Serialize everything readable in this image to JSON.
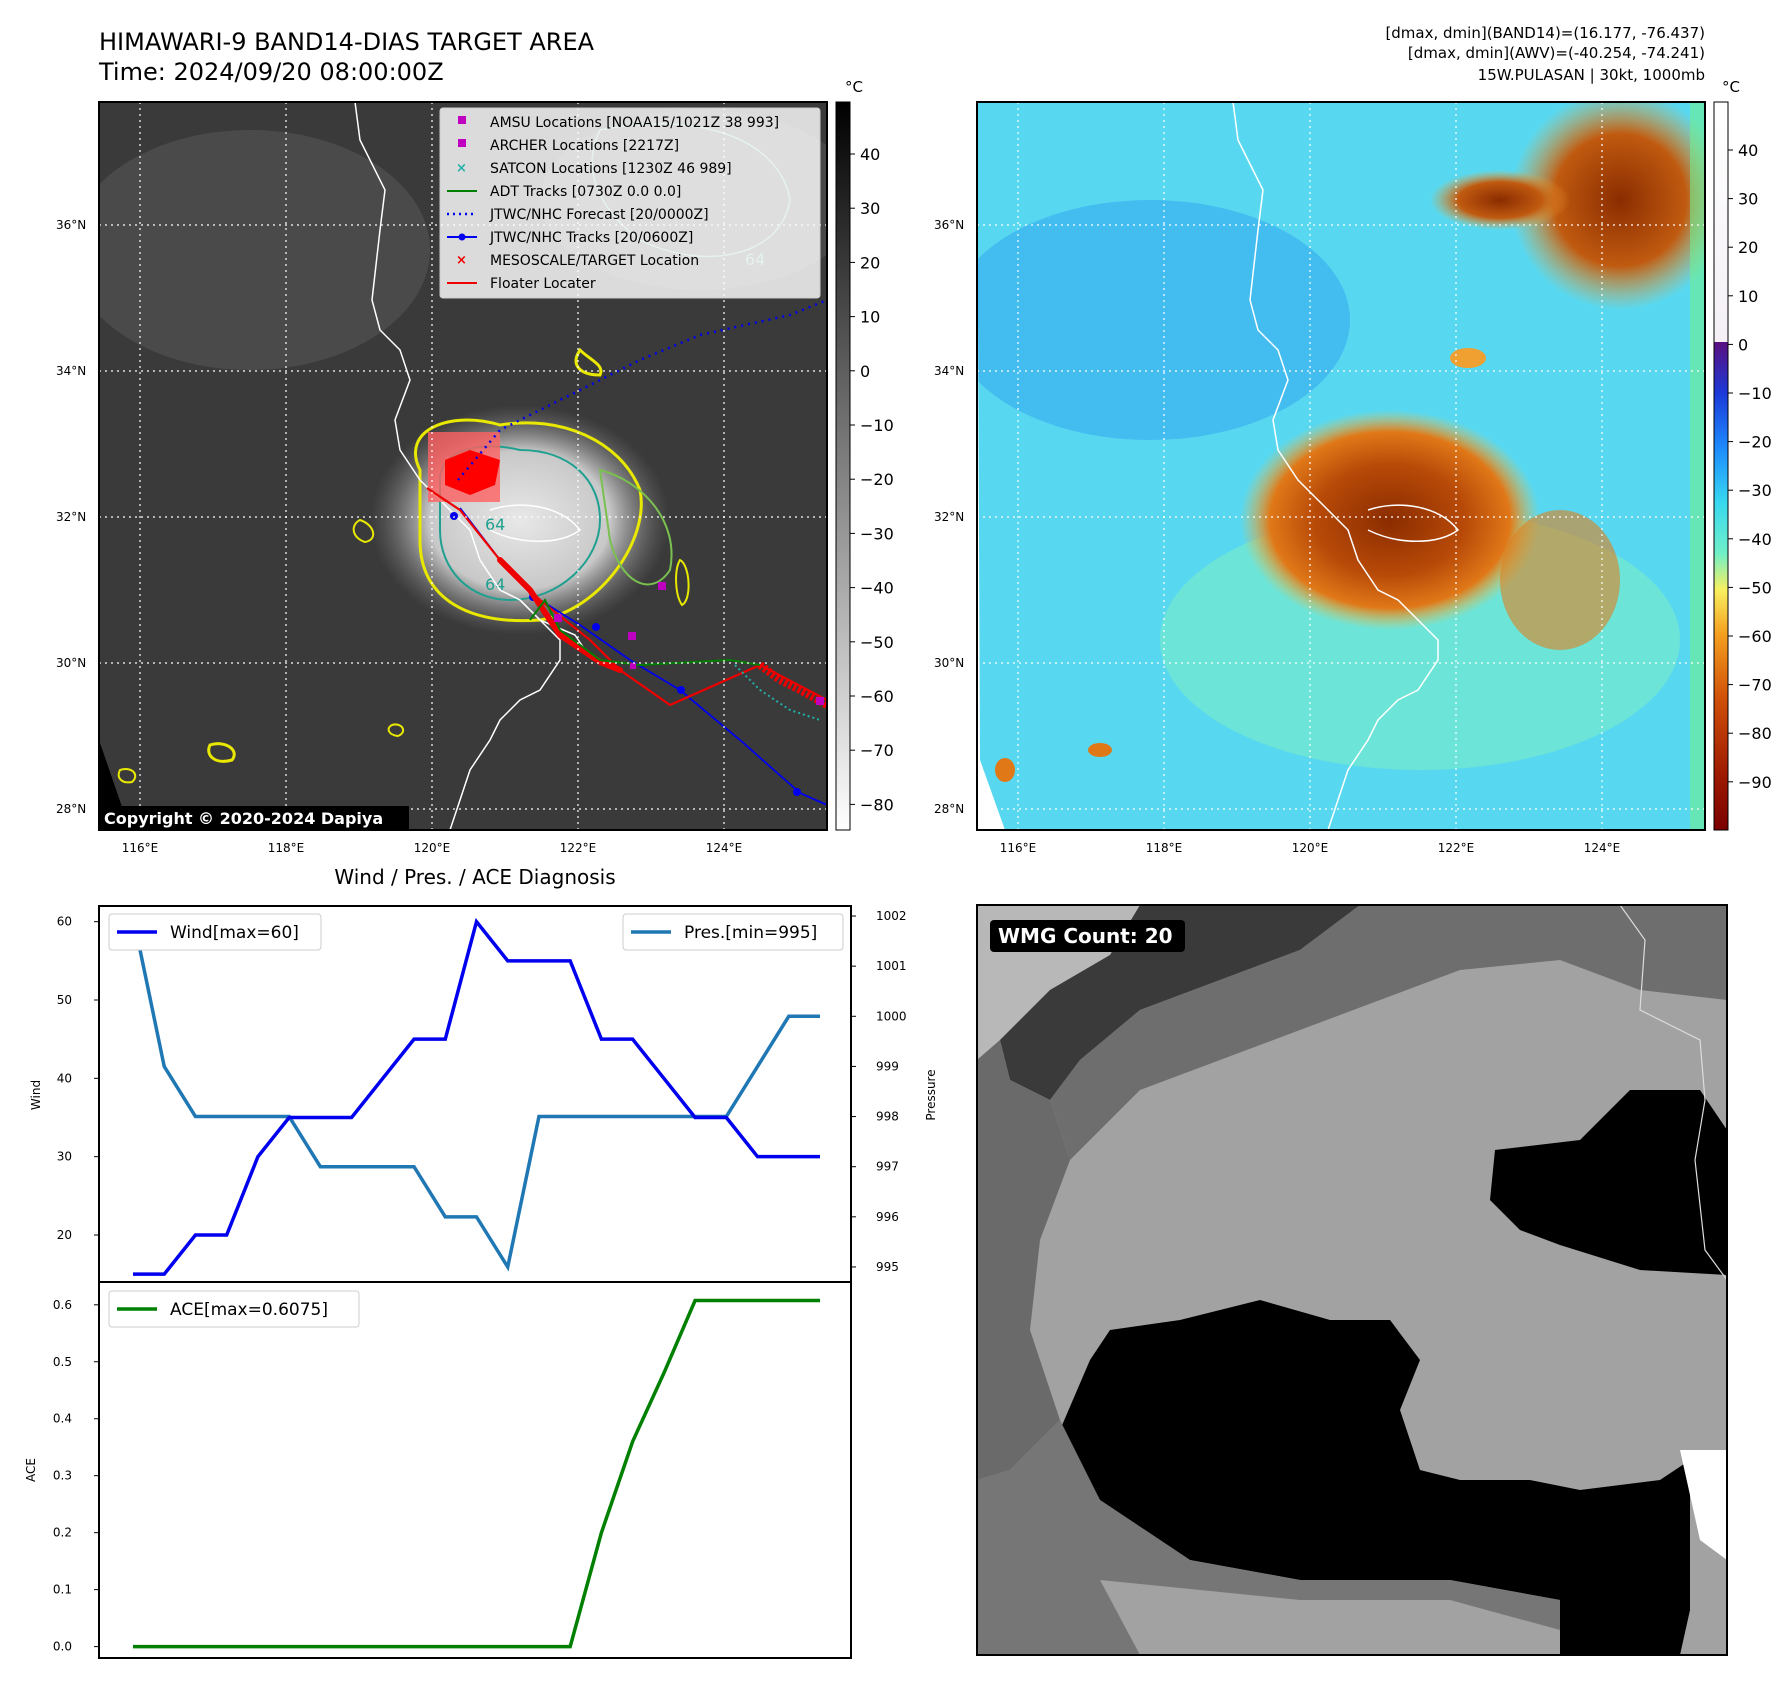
{
  "header": {
    "title": "HIMAWARI-9 BAND14-DIAS TARGET AREA",
    "time": "Time: 2024/09/20 08:00:00Z",
    "stats_band14": "[dmax, dmin](BAND14)=(16.177, -76.437)",
    "stats_awv": "[dmax, dmin](AWV)=(-40.254, -74.241)",
    "storm_info": "15W.PULASAN | 30kt, 1000mb"
  },
  "map": {
    "lat_labels": [
      "36°N",
      "34°N",
      "32°N",
      "30°N",
      "28°N"
    ],
    "lon_labels": [
      "116°E",
      "118°E",
      "120°E",
      "122°E",
      "124°E"
    ],
    "copyright": "Copyright © 2020-2024 Dapiya",
    "contour_labels": [
      "64",
      "64",
      "64"
    ],
    "legend": [
      {
        "label": "AMSU Locations [NOAA15/1021Z 38 993]",
        "kind": "square",
        "color": "#c000c0"
      },
      {
        "label": "ARCHER Locations [2217Z]",
        "kind": "square",
        "color": "#c000c0"
      },
      {
        "label": "SATCON Locations [1230Z 46 989]",
        "kind": "x",
        "color": "#20b0a8"
      },
      {
        "label": "ADT Tracks [0730Z 0.0 0.0]",
        "kind": "line",
        "color": "#008000"
      },
      {
        "label": "JTWC/NHC Forecast [20/0000Z]",
        "kind": "dotted",
        "color": "#0000ee"
      },
      {
        "label": "JTWC/NHC Tracks [20/0600Z]",
        "kind": "line-dot",
        "color": "#0000ee"
      },
      {
        "label": "MESOSCALE/TARGET Location",
        "kind": "x",
        "color": "#ee0000"
      },
      {
        "label": "Floater Locater",
        "kind": "line",
        "color": "#ee0000"
      }
    ]
  },
  "colorbars": {
    "unit": "°C",
    "band14_ticks": [
      "40",
      "30",
      "20",
      "10",
      "0",
      "−10",
      "−20",
      "−30",
      "−40",
      "−50",
      "−60",
      "−70",
      "−80"
    ],
    "awv_ticks": [
      "40",
      "30",
      "20",
      "10",
      "0",
      "−10",
      "−20",
      "−30",
      "−40",
      "−50",
      "−60",
      "−70",
      "−80",
      "−90"
    ]
  },
  "wmg": {
    "label": "WMG Count: 20"
  },
  "chart_data": [
    {
      "type": "line",
      "title": "Wind / Pres. / ACE Diagnosis",
      "ylabel": "Wind",
      "ylim": [
        14,
        62
      ],
      "yticks": [
        20,
        30,
        40,
        50,
        60
      ],
      "y2label": "Pressure",
      "y2lim": [
        994.7,
        1002.2
      ],
      "y2ticks": [
        995,
        996,
        997,
        998,
        999,
        1000,
        1001,
        1002
      ],
      "series": [
        {
          "name": "Wind[max=60]",
          "axis": "left",
          "color": "#0000ee",
          "values": [
            15,
            15,
            20,
            20,
            30,
            35,
            35,
            35,
            40,
            45,
            45,
            60,
            55,
            55,
            55,
            45,
            45,
            40,
            35,
            35,
            30,
            30,
            30
          ]
        },
        {
          "name": "Pres.[min=995]",
          "axis": "right",
          "color": "#1f77b4",
          "values": [
            1002,
            999,
            998,
            998,
            998,
            998,
            997,
            997,
            997,
            997,
            996,
            996,
            995,
            998,
            998,
            998,
            998,
            998,
            998,
            998,
            999,
            1000,
            1000
          ]
        }
      ]
    },
    {
      "type": "line",
      "ylabel": "ACE",
      "ylim": [
        -0.02,
        0.64
      ],
      "yticks": [
        "0.0",
        "0.1",
        "0.2",
        "0.3",
        "0.4",
        "0.5",
        "0.6"
      ],
      "series": [
        {
          "name": "ACE[max=0.6075]",
          "color": "#008000",
          "values": [
            0,
            0,
            0,
            0,
            0,
            0,
            0,
            0,
            0,
            0,
            0,
            0,
            0,
            0,
            0,
            0.2,
            0.36,
            0.48,
            0.6075,
            0.6075,
            0.6075,
            0.6075,
            0.6075
          ]
        }
      ]
    }
  ]
}
